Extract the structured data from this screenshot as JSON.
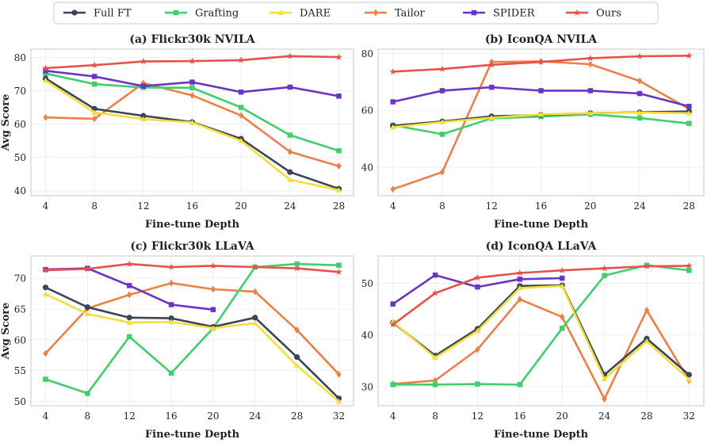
{
  "legend": [
    {
      "name": "Full FT",
      "color": "#3a4656",
      "marker": "circle"
    },
    {
      "name": "Grafting",
      "color": "#3fcf6c",
      "marker": "square"
    },
    {
      "name": "DARE",
      "color": "#f2de3c",
      "marker": "triangle"
    },
    {
      "name": "Tailor",
      "color": "#ec8048",
      "marker": "diamond"
    },
    {
      "name": "SPIDER",
      "color": "#6a35c4",
      "marker": "square"
    },
    {
      "name": "Ours",
      "color": "#e8504a",
      "marker": "star"
    }
  ],
  "chart_data": [
    {
      "type": "line",
      "title": "(a) Flickr30k NVILA",
      "xlabel": "Fine-tune Depth",
      "ylabel": "Avg Score",
      "x": [
        4,
        8,
        12,
        16,
        20,
        24,
        28
      ],
      "xticks": [
        "4",
        "8",
        "12",
        "16",
        "20",
        "24",
        "28"
      ],
      "yticks": [
        40,
        50,
        60,
        70,
        80
      ],
      "xlim": [
        2.8,
        29.2
      ],
      "ylim": [
        38.5,
        82.5
      ],
      "series": [
        {
          "name": "Full FT",
          "values": [
            73.7,
            64.6,
            62.5,
            60.6,
            55.6,
            45.6,
            40.6
          ]
        },
        {
          "name": "Grafting",
          "values": [
            75.2,
            72.0,
            71.0,
            70.9,
            65.0,
            56.7,
            52.0
          ]
        },
        {
          "name": "DARE",
          "values": [
            73.1,
            63.5,
            61.5,
            60.5,
            55.0,
            43.3,
            40.2
          ]
        },
        {
          "name": "Tailor",
          "values": [
            62.0,
            61.6,
            72.3,
            68.6,
            62.6,
            51.7,
            47.4
          ]
        },
        {
          "name": "SPIDER",
          "values": [
            76.0,
            74.3,
            71.4,
            72.6,
            69.6,
            71.1,
            68.4
          ]
        },
        {
          "name": "Ours",
          "values": [
            76.8,
            77.7,
            78.8,
            78.9,
            79.2,
            80.4,
            80.1
          ]
        }
      ]
    },
    {
      "type": "line",
      "title": "(b) IconQA NVILA",
      "xlabel": "Fine-tune Depth",
      "ylabel": "",
      "x": [
        4,
        8,
        12,
        16,
        20,
        24,
        28
      ],
      "xticks": [
        "4",
        "8",
        "12",
        "16",
        "20",
        "24",
        "28"
      ],
      "yticks": [
        40,
        60,
        80
      ],
      "xlim": [
        2.8,
        29.2
      ],
      "ylim": [
        30,
        81.5
      ],
      "series": [
        {
          "name": "Full FT",
          "values": [
            54.6,
            56.1,
            57.9,
            58.4,
            59.0,
            59.3,
            59.6
          ]
        },
        {
          "name": "Grafting",
          "values": [
            54.8,
            51.6,
            57.2,
            57.8,
            58.6,
            57.3,
            55.4
          ]
        },
        {
          "name": "DARE",
          "values": [
            54.1,
            55.9,
            57.4,
            58.6,
            59.0,
            59.2,
            59.0
          ]
        },
        {
          "name": "Tailor",
          "values": [
            32.3,
            38.3,
            77.0,
            77.2,
            76.2,
            70.3,
            60.5
          ]
        },
        {
          "name": "SPIDER",
          "values": [
            63.0,
            66.9,
            68.1,
            66.9,
            66.9,
            65.9,
            61.4
          ]
        },
        {
          "name": "Ours",
          "values": [
            73.6,
            74.5,
            76.0,
            77.0,
            78.3,
            79.0,
            79.2
          ]
        }
      ]
    },
    {
      "type": "line",
      "title": "(c) Flickr30k LLaVA",
      "xlabel": "Fine-tune Depth",
      "ylabel": "Avg Score",
      "x": [
        4,
        8,
        12,
        16,
        20,
        24,
        28,
        32
      ],
      "xticks": [
        "4",
        "8",
        "12",
        "16",
        "20",
        "24",
        "28",
        "32"
      ],
      "yticks": [
        50,
        55,
        60,
        65,
        70
      ],
      "xlim": [
        2.6,
        33.4
      ],
      "ylim": [
        49.3,
        73.6
      ],
      "series": [
        {
          "name": "Full FT",
          "values": [
            68.5,
            65.3,
            63.6,
            63.5,
            62.1,
            63.6,
            57.2,
            50.5
          ]
        },
        {
          "name": "Grafting",
          "values": [
            53.6,
            51.3,
            60.5,
            54.6,
            61.9,
            71.8,
            72.3,
            72.1
          ]
        },
        {
          "name": "DARE",
          "values": [
            67.4,
            64.2,
            62.8,
            62.9,
            61.9,
            62.7,
            55.8,
            50.0
          ]
        },
        {
          "name": "Tailor",
          "values": [
            57.8,
            65.1,
            67.3,
            69.2,
            68.2,
            67.8,
            61.6,
            54.4
          ]
        },
        {
          "name": "SPIDER",
          "values": [
            71.4,
            71.6,
            68.8,
            65.7,
            64.9,
            null,
            null,
            null
          ]
        },
        {
          "name": "Ours",
          "values": [
            71.3,
            71.5,
            72.3,
            71.8,
            72.0,
            71.8,
            71.6,
            71.0
          ]
        }
      ]
    },
    {
      "type": "line",
      "title": "(d) IconQA LLaVA",
      "xlabel": "Fine-tune Depth",
      "ylabel": "",
      "x": [
        4,
        8,
        12,
        16,
        20,
        24,
        28,
        32
      ],
      "xticks": [
        "4",
        "8",
        "12",
        "16",
        "20",
        "24",
        "28",
        "32"
      ],
      "yticks": [
        30,
        40,
        50
      ],
      "xlim": [
        2.6,
        33.4
      ],
      "ylim": [
        26.3,
        55.3
      ],
      "series": [
        {
          "name": "Full FT",
          "values": [
            42.4,
            36.0,
            41.2,
            49.5,
            49.6,
            32.3,
            39.3,
            32.3
          ]
        },
        {
          "name": "Grafting",
          "values": [
            30.4,
            30.4,
            30.5,
            30.4,
            41.3,
            51.5,
            53.5,
            52.5
          ]
        },
        {
          "name": "DARE",
          "values": [
            42.6,
            35.6,
            40.8,
            49.1,
            49.5,
            31.5,
            38.8,
            31.4
          ]
        },
        {
          "name": "Tailor",
          "values": [
            30.5,
            31.2,
            37.2,
            46.9,
            43.5,
            27.6,
            44.8,
            31.2
          ]
        },
        {
          "name": "SPIDER",
          "values": [
            46.0,
            51.6,
            49.3,
            50.8,
            51.0,
            null,
            null,
            null
          ]
        },
        {
          "name": "Ours",
          "values": [
            42.0,
            48.1,
            51.1,
            52.0,
            52.5,
            52.9,
            53.3,
            53.4
          ]
        }
      ]
    }
  ]
}
